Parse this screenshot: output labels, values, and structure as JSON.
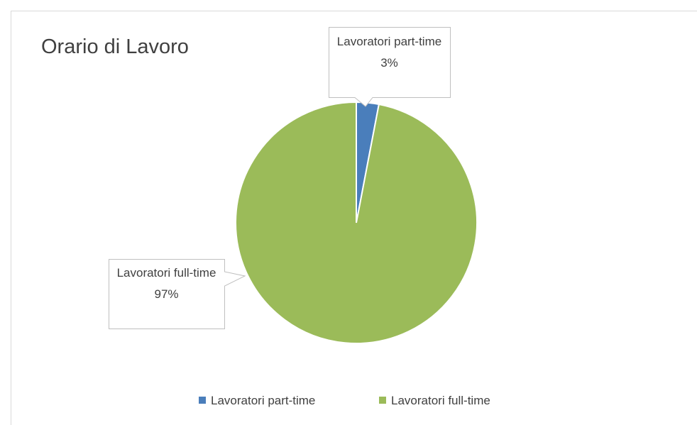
{
  "chart_data": {
    "type": "pie",
    "title": "Orario di Lavoro",
    "categories": [
      "Lavoratori part-time",
      "Lavoratori full-time"
    ],
    "values": [
      3,
      97
    ],
    "value_labels": [
      "3%",
      "97%"
    ],
    "colors": [
      "#4a7ebb",
      "#9bbb59"
    ],
    "legend": "bottom"
  }
}
